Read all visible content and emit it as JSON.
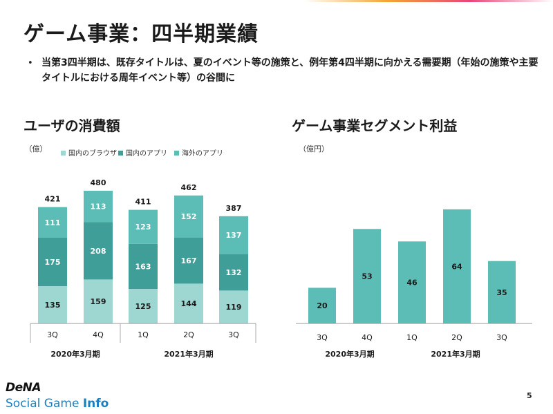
{
  "page": {
    "title": "ゲーム事業：四半期業績",
    "bullet": "当第3四半期は、既存タイトルは、夏のイベント等の施策と、例年第4四半期に向かえる需要期（年始の施策や主要タイトルにおける周年イベント等）の谷間に",
    "page_number": "5",
    "logo_brand": "DeNA",
    "logo_sub_1": "Social Game ",
    "logo_sub_2": "Info"
  },
  "chart_data": [
    {
      "type": "bar",
      "stacked": true,
      "title": "ユーザの消費額",
      "unit": "（億）",
      "categories": [
        "3Q",
        "4Q",
        "1Q",
        "2Q",
        "3Q"
      ],
      "groups": [
        {
          "label": "2020年3月期",
          "categories": [
            "3Q",
            "4Q"
          ]
        },
        {
          "label": "2021年3月期",
          "categories": [
            "1Q",
            "2Q",
            "3Q"
          ]
        }
      ],
      "totals": [
        421,
        480,
        411,
        462,
        387
      ],
      "series": [
        {
          "name": "国内のブラウザ",
          "color": "#9ed7d2",
          "values": [
            135,
            159,
            125,
            144,
            119
          ]
        },
        {
          "name": "国内のアプリ",
          "color": "#3f9e98",
          "values": [
            175,
            208,
            163,
            167,
            132
          ]
        },
        {
          "name": "海外のアプリ",
          "color": "#5cbdb6",
          "values": [
            111,
            113,
            123,
            152,
            137
          ]
        }
      ],
      "legend_position": "top",
      "grid": false
    },
    {
      "type": "bar",
      "title": "ゲーム事業セグメント利益",
      "unit": "（億円）",
      "categories": [
        "3Q",
        "4Q",
        "1Q",
        "2Q",
        "3Q"
      ],
      "groups": [
        {
          "label": "2020年3月期",
          "categories": [
            "3Q",
            "4Q"
          ]
        },
        {
          "label": "2021年3月期",
          "categories": [
            "1Q",
            "2Q",
            "3Q"
          ]
        }
      ],
      "values": [
        20,
        53,
        46,
        64,
        35
      ],
      "color": "#5cbdb6",
      "grid": false
    }
  ]
}
